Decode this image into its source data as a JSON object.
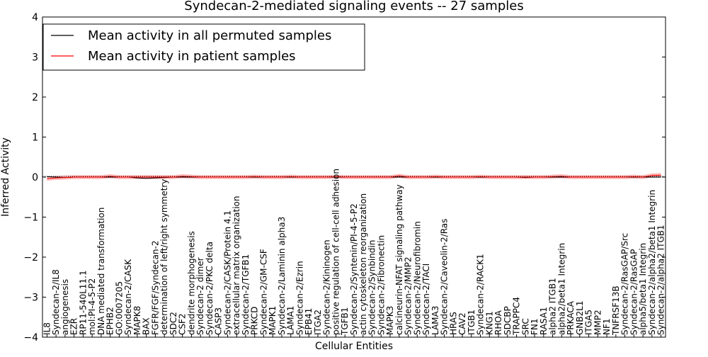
{
  "chart_data": {
    "type": "line",
    "title": "Syndecan-2-mediated signaling events -- 27 samples",
    "xlabel": "Cellular Entities",
    "ylabel": "Inferred Activity",
    "ylim": [
      -4,
      4
    ],
    "yticks": [
      -4,
      -3,
      -2,
      -1,
      0,
      1,
      2,
      3,
      4
    ],
    "ytick_labels": [
      "−4",
      "−3",
      "−2",
      "−1",
      "0",
      "1",
      "2",
      "3",
      "4"
    ],
    "legend_position": "top-left",
    "categories": [
      "IL8",
      "Syndecan-2/IL8",
      "angiogenesis",
      "EZR",
      "RP11-540L11.1",
      "mol:PI-4-5-P2",
      "DNA mediated transformation",
      "EPHB2",
      "GO:0007205",
      "Syndecan-2/CASK",
      "MAPK8",
      "BAX",
      "FGFR/FGF/Syndecan-2",
      "determination of left/right symmetry",
      "SDC2",
      "CSF2",
      "dendrite morphogenesis",
      "Syndecan-2 dimer",
      "Syndecan-2/PKC delta",
      "CASP3",
      "Syndecan-2/CASK/Protein 4.1",
      "extracellular matrix organization",
      "Syndecan-2/TGFB1",
      "PRKCD",
      "Syndecan-2/GM-CSF",
      "MAPK1",
      "Syndecan-2/Laminin alpha3",
      "LAMA1",
      "Syndecan-2/Ezrin",
      "EPB41",
      "ITGA2",
      "Syndecan-2/Kininogen",
      "positive regulation of cell-cell adhesion",
      "TGFB1",
      "Syndecan-2/Syntenin/PI-4-5-P2",
      "actin cytoskeleton reorganization",
      "Syndecan-2/Synbindin",
      "Syndecan-2/Fibronectin",
      "MAPK3",
      "calcineurin-NFAT signaling pathway",
      "Syndecan-2/MMP2",
      "Syndecan-2/Neurofibromin",
      "Syndecan-2/TACI",
      "LAMA3",
      "Syndecan-2/Caveolin-2/Ras",
      "HRAS",
      "CAV2",
      "ITGB1",
      "Syndecan-2/RACK1",
      "KNG1",
      "RHOA",
      "SDCBP",
      "TRAPPC4",
      "SRC",
      "FN1",
      "RASA1",
      "alpha2 ITGB1",
      "alpha2/beta1 Integrin",
      "PRKACA",
      "GNB2L1",
      "ITGA5",
      "MMP2",
      "NF1",
      "TNFRSF13B",
      "Syndecan-2/RasGAP/Src",
      "Syndecan-2/RasGAP",
      "alpha5/beta1 Integrin",
      "Syndecan-2/alpha2/beta1 Integrin",
      "Syndecan-2/alpha2 ITGB1"
    ],
    "series": [
      {
        "name": "Mean activity in all permuted samples",
        "color": "#000000",
        "values": [
          0.01,
          0.0,
          -0.01,
          0.0,
          0.0,
          0.0,
          0.0,
          0.0,
          0.0,
          0.0,
          -0.02,
          -0.03,
          -0.02,
          -0.01,
          0.0,
          0.0,
          0.0,
          0.0,
          0.0,
          0.0,
          0.0,
          0.0,
          0.0,
          0.0,
          0.0,
          0.0,
          0.0,
          0.0,
          0.0,
          0.0,
          0.0,
          0.0,
          0.0,
          0.0,
          0.0,
          0.0,
          0.0,
          0.0,
          0.0,
          0.0,
          0.0,
          0.0,
          0.0,
          0.0,
          0.0,
          0.0,
          0.0,
          0.0,
          0.0,
          0.0,
          0.0,
          0.0,
          0.0,
          -0.01,
          0.0,
          0.0,
          0.0,
          0.0,
          0.0,
          0.0,
          0.0,
          0.0,
          0.0,
          0.0,
          0.0,
          0.0,
          0.0,
          0.0,
          0.0
        ],
        "band": 0.02,
        "band_color": "#bfbfbf"
      },
      {
        "name": "Mean activity in patient samples",
        "color": "#ff0000",
        "values": [
          -0.04,
          -0.02,
          -0.01,
          0.0,
          0.0,
          0.0,
          0.0,
          0.02,
          0.0,
          0.0,
          0.0,
          0.0,
          0.0,
          0.0,
          0.0,
          0.02,
          0.01,
          0.0,
          0.0,
          0.0,
          0.0,
          0.0,
          0.0,
          0.01,
          0.0,
          0.0,
          0.0,
          0.01,
          0.0,
          0.0,
          0.0,
          0.0,
          0.01,
          0.0,
          0.0,
          0.0,
          0.0,
          0.0,
          0.0,
          0.03,
          0.0,
          0.0,
          0.0,
          0.01,
          0.0,
          0.0,
          0.0,
          0.0,
          0.01,
          0.0,
          0.0,
          0.0,
          0.0,
          0.0,
          0.0,
          0.0,
          0.01,
          0.02,
          0.0,
          0.0,
          0.0,
          0.0,
          0.0,
          0.0,
          0.0,
          0.01,
          0.0,
          0.04,
          0.05
        ],
        "band": 0.05,
        "band_color": "#ff8a8a"
      }
    ]
  }
}
